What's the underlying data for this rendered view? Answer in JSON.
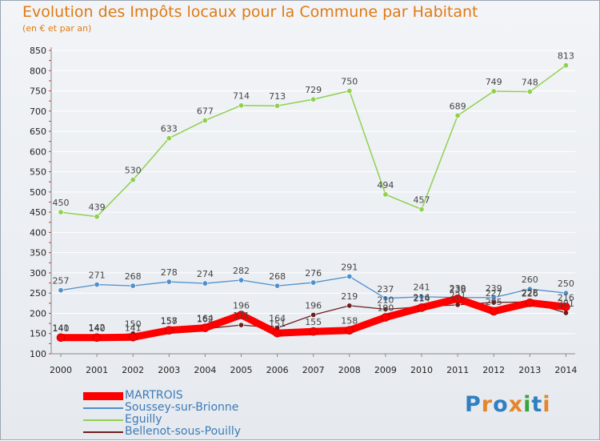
{
  "title": "Evolution des Impôts locaux pour la Commune par Habitant",
  "subtitle": "(en € et par an)",
  "logo_text": "Proxiti",
  "logo_colors": [
    "#2f7fc1",
    "#e4862a",
    "#2f7fc1",
    "#e4862a",
    "#3aa33a",
    "#2f7fc1",
    "#e4862a"
  ],
  "colors": {
    "title": "#e07a12",
    "grid": "#ffffff",
    "axis": "#888888",
    "tick_label": "#222222",
    "value_label": "#444444",
    "legend_text": "#3d7ab8"
  },
  "chart_data": {
    "type": "line",
    "title": "Evolution des Impôts locaux pour la Commune par Habitant",
    "subtitle": "(en € et par an)",
    "xlabel": "",
    "ylabel": "",
    "x": [
      "2000",
      "2001",
      "2002",
      "2003",
      "2004",
      "2005",
      "2006",
      "2007",
      "2008",
      "2009",
      "2010",
      "2011",
      "2012",
      "2013",
      "2014"
    ],
    "ylim": [
      100,
      850
    ],
    "yticks": [
      100,
      150,
      200,
      250,
      300,
      350,
      400,
      450,
      500,
      550,
      600,
      650,
      700,
      750,
      800,
      850
    ],
    "grid": true,
    "legend_position": "bottom-left",
    "series": [
      {
        "name": "MARTROIS",
        "color": "#ff0000",
        "values": [
          140,
          140,
          141,
          158,
          164,
          196,
          151,
          155,
          158,
          190,
          214,
          236,
          205,
          226,
          216
        ]
      },
      {
        "name": "Soussey-sur-Brionne",
        "color": "#4f8fcc",
        "values": [
          257,
          271,
          268,
          278,
          274,
          282,
          268,
          276,
          291,
          237,
          241,
          239,
          239,
          260,
          250
        ]
      },
      {
        "name": "Eguilly",
        "color": "#8fd04f",
        "values": [
          450,
          439,
          530,
          633,
          677,
          714,
          713,
          729,
          750,
          494,
          457,
          689,
          749,
          748,
          813
        ]
      },
      {
        "name": "Bellenot-sous-Pouilly",
        "color": "#6b1f1f",
        "values": [
          141,
          142,
          150,
          157,
          162,
          171,
          164,
          196,
          219,
          210,
          216,
          221,
          227,
          228,
          201
        ]
      }
    ]
  }
}
